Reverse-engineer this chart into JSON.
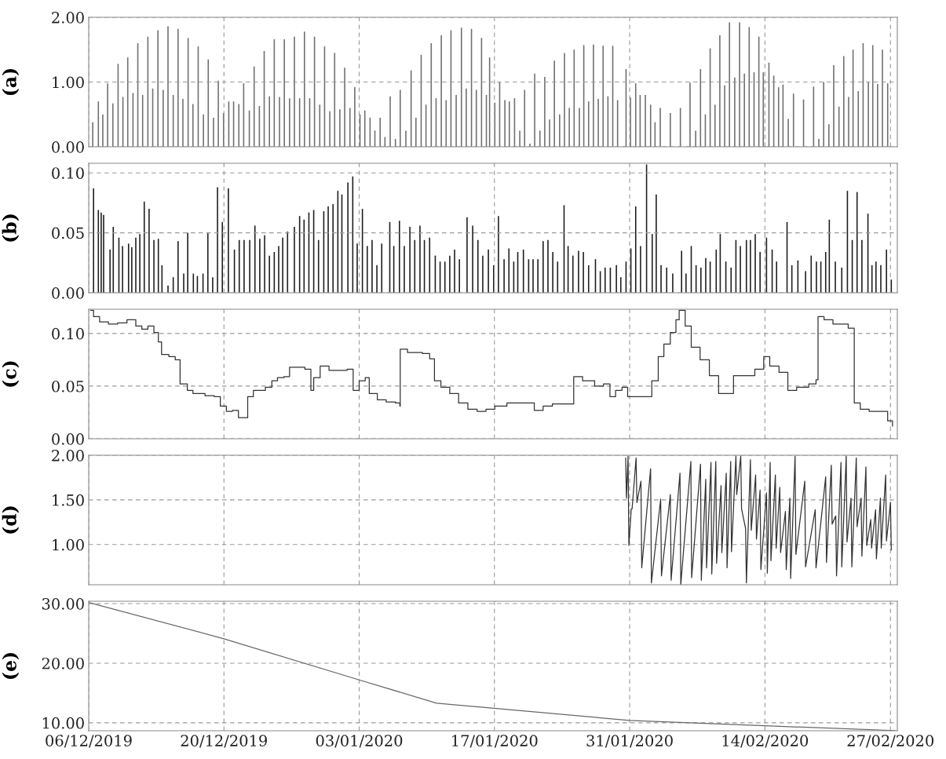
{
  "chart_data": [
    {
      "type": "bar",
      "ylabel": "(a)",
      "color": "#707070",
      "grid": true,
      "tick_labels": "y",
      "xlim": [
        "2019-12-06",
        "2020-02-27T17:00"
      ],
      "xticks": [
        {
          "value": "2019-12-06",
          "label": null
        },
        {
          "value": "2019-12-20",
          "label": null
        },
        {
          "value": "2020-01-03",
          "label": null
        },
        {
          "value": "2020-01-17",
          "label": null
        },
        {
          "value": "2020-01-31",
          "label": null
        },
        {
          "value": "2020-02-14",
          "label": null
        },
        {
          "value": "2020-02-27",
          "label": null
        }
      ],
      "ylim": [
        0,
        2.0
      ],
      "yticks": [
        {
          "value": 0,
          "label": "0.00"
        },
        {
          "value": 1,
          "label": "1.00"
        },
        {
          "value": 2,
          "label": "2.00"
        }
      ],
      "x": [
        "2019-12-06T10:00",
        "2019-12-07T00:00",
        "2019-12-07T11:00",
        "2019-12-07T23:00",
        "2019-12-08T12:00",
        "2019-12-09T01:00",
        "2019-12-09T13:00",
        "2019-12-10T01:00",
        "2019-12-10T14:00",
        "2019-12-11T02:00",
        "2019-12-11T14:00",
        "2019-12-12T03:00",
        "2019-12-12T15:00",
        "2019-12-13T04:00",
        "2019-12-13T17:00",
        "2019-12-14T05:00",
        "2019-12-14T18:00",
        "2019-12-15T06:00",
        "2019-12-15T18:00",
        "2019-12-16T07:00",
        "2019-12-16T19:00",
        "2019-12-17T08:00",
        "2019-12-17T21:00",
        "2019-12-18T09:00",
        "2019-12-18T22:00",
        "2019-12-19T10:00",
        "2019-12-19T23:00",
        "2019-12-20T12:00",
        "2019-12-21T00:00",
        "2019-12-21T13:00",
        "2019-12-22T01:00",
        "2019-12-22T15:00",
        "2019-12-23T03:00",
        "2019-12-23T16:00",
        "2019-12-24T04:00",
        "2019-12-24T17:00",
        "2019-12-25T05:00",
        "2019-12-25T18:00",
        "2019-12-26T06:00",
        "2019-12-26T19:00",
        "2019-12-27T07:00",
        "2019-12-27T20:00",
        "2019-12-28T08:00",
        "2019-12-28T21:00",
        "2019-12-29T09:00",
        "2019-12-29T22:00",
        "2019-12-30T10:00",
        "2019-12-30T23:00",
        "2019-12-31T11:00",
        "2020-01-01T00:00",
        "2020-01-01T12:00",
        "2020-01-02T01:00",
        "2020-01-02T13:00",
        "2020-01-03T02:00",
        "2020-01-03T14:00",
        "2020-01-04T03:00",
        "2020-01-04T15:00",
        "2020-01-05T04:00",
        "2020-01-05T16:00",
        "2020-01-06T05:00",
        "2020-01-06T18:00",
        "2020-01-07T06:00",
        "2020-01-07T20:00",
        "2020-01-08T09:00",
        "2020-01-08T21:00",
        "2020-01-09T10:00",
        "2020-01-09T22:00",
        "2020-01-10T11:00",
        "2020-01-10T23:00",
        "2020-01-11T12:00",
        "2020-01-12T00:00",
        "2020-01-12T12:00",
        "2020-01-13T01:00",
        "2020-01-13T14:00",
        "2020-01-14T02:00",
        "2020-01-14T15:00",
        "2020-01-15T03:00",
        "2020-01-15T16:00",
        "2020-01-16T04:00",
        "2020-01-16T12:00",
        "2020-01-17T01:00",
        "2020-01-17T13:00",
        "2020-01-18T02:00",
        "2020-01-18T13:00",
        "2020-01-19T02:00",
        "2020-01-19T15:00",
        "2020-01-20T03:00",
        "2020-01-20T16:00",
        "2020-01-21T04:00",
        "2020-01-21T17:00",
        "2020-01-22T05:00",
        "2020-01-22T17:00",
        "2020-01-23T05:00",
        "2020-01-23T18:00",
        "2020-01-24T06:00",
        "2020-01-24T18:00",
        "2020-01-25T06:00",
        "2020-01-25T19:00",
        "2020-01-26T06:00",
        "2020-01-26T18:00",
        "2020-01-27T06:00",
        "2020-01-27T18:00",
        "2020-01-28T06:00",
        "2020-01-28T18:00",
        "2020-01-29T06:00",
        "2020-01-29T18:00",
        "2020-01-30T15:00",
        "2020-01-31T02:00",
        "2020-01-31T15:00",
        "2020-02-01T02:00",
        "2020-02-01T15:00",
        "2020-02-02T04:00",
        "2020-02-02T15:00",
        "2020-02-03T04:00",
        "2020-02-04T05:00",
        "2020-02-05T06:00",
        "2020-02-06T06:00",
        "2020-02-06T20:00",
        "2020-02-07T08:00",
        "2020-02-07T20:00",
        "2020-02-08T08:00",
        "2020-02-08T20:00",
        "2020-02-09T08:00",
        "2020-02-09T20:00",
        "2020-02-10T08:00",
        "2020-02-10T21:00",
        "2020-02-11T09:00",
        "2020-02-11T21:00",
        "2020-02-12T09:00",
        "2020-02-12T21:00",
        "2020-02-13T09:00",
        "2020-02-13T20:00",
        "2020-02-14T10:00",
        "2020-02-14T22:00",
        "2020-02-15T10:00",
        "2020-02-15T21:00",
        "2020-02-16T10:00",
        "2020-02-16T23:00",
        "2020-02-18T00:00",
        "2020-02-19T01:00",
        "2020-02-19T14:00",
        "2020-02-20T02:00",
        "2020-02-20T15:00",
        "2020-02-21T03:00",
        "2020-02-21T16:00",
        "2020-02-22T04:00",
        "2020-02-22T16:00",
        "2020-02-23T03:00",
        "2020-02-23T16:00",
        "2020-02-24T04:00",
        "2020-02-24T17:00",
        "2020-02-25T04:00",
        "2020-02-25T16:00",
        "2020-02-26T04:00",
        "2020-02-26T17:00"
      ],
      "values": [
        0.38,
        0.7,
        0.5,
        0.98,
        0.67,
        1.28,
        0.77,
        1.38,
        0.83,
        1.6,
        0.8,
        1.7,
        0.9,
        1.8,
        0.88,
        1.86,
        0.8,
        1.82,
        0.74,
        1.68,
        0.66,
        1.55,
        0.5,
        1.35,
        0.45,
        1.02,
        0.52,
        0.7,
        0.7,
        0.66,
        0.98,
        0.56,
        1.24,
        0.63,
        1.48,
        0.78,
        1.66,
        0.77,
        1.66,
        0.75,
        1.7,
        0.75,
        1.78,
        0.75,
        1.7,
        0.65,
        1.55,
        0.55,
        1.45,
        0.58,
        1.22,
        0.6,
        0.92,
        0.5,
        0.56,
        0.45,
        0.25,
        0.45,
        0.15,
        0.78,
        0.12,
        0.88,
        0.25,
        1.18,
        0.45,
        1.42,
        0.65,
        1.6,
        0.75,
        1.72,
        0.72,
        1.8,
        0.8,
        1.84,
        0.9,
        1.82,
        0.88,
        1.68,
        0.8,
        1.38,
        0.68,
        1.0,
        0.72,
        0.7,
        0.75,
        0.25,
        0.88,
        0.05,
        1.13,
        0.25,
        1.08,
        0.42,
        1.33,
        0.5,
        1.45,
        0.6,
        1.5,
        0.6,
        1.57,
        0.7,
        1.58,
        0.74,
        1.56,
        0.78,
        1.56,
        0.72,
        1.2,
        0.76,
        0.98,
        0.8,
        0.8,
        0.65,
        0.38,
        0.6,
        0.52,
        0.6,
        0.99,
        0.25,
        1.2,
        0.5,
        1.52,
        0.65,
        1.72,
        0.95,
        1.92,
        1.07,
        1.92,
        1.13,
        1.85,
        1.15,
        1.7,
        1.15,
        1.3,
        1.1,
        0.92,
        0.96,
        0.43,
        0.82,
        0.73,
        0.93,
        0.12,
        1.0,
        0.35,
        1.26,
        0.62,
        1.4,
        0.77,
        1.5,
        0.86,
        1.6,
        1.0,
        1.57,
        0.97,
        1.5,
        0.98
      ]
    },
    {
      "type": "bar",
      "ylabel": "(b)",
      "color": "#1e1e1e",
      "grid": true,
      "tick_labels": "y",
      "xlim": [
        "2019-12-06",
        "2020-02-27T17:00"
      ],
      "xticks": [
        {
          "value": "2019-12-06",
          "label": null
        },
        {
          "value": "2019-12-20",
          "label": null
        },
        {
          "value": "2020-01-03",
          "label": null
        },
        {
          "value": "2020-01-17",
          "label": null
        },
        {
          "value": "2020-01-31",
          "label": null
        },
        {
          "value": "2020-02-14",
          "label": null
        },
        {
          "value": "2020-02-27",
          "label": null
        }
      ],
      "ylim": [
        0,
        0.108
      ],
      "yticks": [
        {
          "value": 0,
          "label": "0.00"
        },
        {
          "value": 0.05,
          "label": "0.05"
        },
        {
          "value": 0.1,
          "label": "0.10"
        }
      ],
      "x": [
        "2019-12-06T12:00",
        "2019-12-07T00:00",
        "2019-12-07T07:00",
        "2019-12-07T13:00",
        "2019-12-08T05:00",
        "2019-12-08T13:00",
        "2019-12-09T03:00",
        "2019-12-09T12:00",
        "2019-12-10T03:00",
        "2019-12-10T11:00",
        "2019-12-10T21:00",
        "2019-12-11T07:00",
        "2019-12-11T18:00",
        "2019-12-12T06:00",
        "2019-12-12T18:00",
        "2019-12-13T05:00",
        "2019-12-13T14:00",
        "2019-12-14T05:00",
        "2019-12-14T18:00",
        "2019-12-15T06:00",
        "2019-12-15T20:00",
        "2019-12-16T06:00",
        "2019-12-16T20:00",
        "2019-12-17T06:00",
        "2019-12-17T20:00",
        "2019-12-18T08:00",
        "2019-12-18T20:00",
        "2019-12-19T08:00",
        "2019-12-19T20:00",
        "2019-12-20T11:00",
        "2019-12-21T02:00",
        "2019-12-21T14:00",
        "2019-12-22T02:00",
        "2019-12-22T16:00",
        "2019-12-23T05:00",
        "2019-12-23T17:00",
        "2019-12-24T05:00",
        "2019-12-24T17:00",
        "2019-12-25T05:00",
        "2019-12-25T16:00",
        "2019-12-26T02:00",
        "2019-12-26T14:00",
        "2019-12-27T07:00",
        "2019-12-27T20:00",
        "2019-12-28T07:00",
        "2019-12-28T19:00",
        "2019-12-29T07:00",
        "2019-12-29T19:00",
        "2019-12-30T08:00",
        "2019-12-30T19:00",
        "2019-12-31T07:00",
        "2019-12-31T19:00",
        "2020-01-01T05:00",
        "2020-01-01T20:00",
        "2020-01-02T08:00",
        "2020-01-02T19:00",
        "2020-01-03T08:00",
        "2020-01-03T20:00",
        "2020-01-04T08:00",
        "2020-01-04T20:00",
        "2020-01-05T08:00",
        "2020-01-06T04:00",
        "2020-01-06T14:00",
        "2020-01-07T04:00",
        "2020-01-07T16:00",
        "2020-01-08T06:00",
        "2020-01-08T18:00",
        "2020-01-09T07:00",
        "2020-01-09T18:00",
        "2020-01-10T07:00",
        "2020-01-10T21:00",
        "2020-01-11T09:00",
        "2020-01-11T21:00",
        "2020-01-12T09:00",
        "2020-01-12T21:00",
        "2020-01-13T09:00",
        "2020-01-14T04:00",
        "2020-01-14T18:00",
        "2020-01-15T07:00",
        "2020-01-15T19:00",
        "2020-01-16T09:00",
        "2020-01-16T22:00",
        "2020-01-17T10:00",
        "2020-01-18T00:00",
        "2020-01-18T12:00",
        "2020-01-19T00:00",
        "2020-01-19T10:00",
        "2020-01-20T00:00",
        "2020-01-20T13:00",
        "2020-01-21T00:00",
        "2020-01-21T12:00",
        "2020-01-22T01:00",
        "2020-01-22T13:00",
        "2020-01-23T01:00",
        "2020-01-23T13:00",
        "2020-01-24T05:00",
        "2020-01-24T15:00",
        "2020-01-25T03:00",
        "2020-01-25T17:00",
        "2020-01-26T05:00",
        "2020-01-26T18:00",
        "2020-01-27T11:00",
        "2020-01-27T23:00",
        "2020-01-28T11:00",
        "2020-01-29T00:00",
        "2020-01-29T15:00",
        "2020-01-30T02:00",
        "2020-01-30T15:00",
        "2020-01-31T03:00",
        "2020-01-31T15:00",
        "2020-02-01T03:00",
        "2020-02-01T18:00",
        "2020-02-02T08:00",
        "2020-02-02T18:00",
        "2020-02-03T06:00",
        "2020-02-03T20:00",
        "2020-02-04T11:00",
        "2020-02-05T09:00",
        "2020-02-05T20:00",
        "2020-02-06T09:00",
        "2020-02-06T21:00",
        "2020-02-07T09:00",
        "2020-02-07T21:00",
        "2020-02-08T08:00",
        "2020-02-08T23:00",
        "2020-02-09T09:00",
        "2020-02-09T23:00",
        "2020-02-10T12:00",
        "2020-02-11T00:00",
        "2020-02-11T11:00",
        "2020-02-12T02:00",
        "2020-02-12T12:00",
        "2020-02-13T00:00",
        "2020-02-13T12:00",
        "2020-02-14T04:00",
        "2020-02-14T18:00",
        "2020-02-15T05:00",
        "2020-02-16T07:00",
        "2020-02-16T19:00",
        "2020-02-17T10:00",
        "2020-02-18T05:00",
        "2020-02-18T19:00",
        "2020-02-19T08:00",
        "2020-02-19T19:00",
        "2020-02-20T07:00",
        "2020-02-20T16:00",
        "2020-02-21T07:00",
        "2020-02-21T23:00",
        "2020-02-22T13:00",
        "2020-02-23T01:00",
        "2020-02-23T13:00",
        "2020-02-24T01:00",
        "2020-02-24T16:00",
        "2020-02-25T02:00",
        "2020-02-25T12:00",
        "2020-02-26T00:00",
        "2020-02-26T14:00",
        "2020-02-27T02:00"
      ],
      "values": [
        0.087,
        0.069,
        0.067,
        0.065,
        0.036,
        0.055,
        0.046,
        0.039,
        0.041,
        0.038,
        0.046,
        0.049,
        0.076,
        0.07,
        0.044,
        0.045,
        0.023,
        0.006,
        0.013,
        0.043,
        0.016,
        0.05,
        0.016,
        0.014,
        0.016,
        0.05,
        0.013,
        0.088,
        0.059,
        0.087,
        0.036,
        0.044,
        0.044,
        0.044,
        0.056,
        0.045,
        0.048,
        0.031,
        0.034,
        0.039,
        0.046,
        0.051,
        0.055,
        0.064,
        0.061,
        0.067,
        0.069,
        0.044,
        0.068,
        0.072,
        0.074,
        0.085,
        0.082,
        0.092,
        0.097,
        0.041,
        0.07,
        0.039,
        0.044,
        0.023,
        0.041,
        0.059,
        0.039,
        0.06,
        0.039,
        0.055,
        0.044,
        0.056,
        0.044,
        0.046,
        0.031,
        0.026,
        0.026,
        0.031,
        0.036,
        0.028,
        0.063,
        0.056,
        0.044,
        0.031,
        0.036,
        0.023,
        0.064,
        0.028,
        0.037,
        0.026,
        0.034,
        0.036,
        0.028,
        0.028,
        0.028,
        0.043,
        0.044,
        0.034,
        0.026,
        0.073,
        0.039,
        0.031,
        0.035,
        0.034,
        0.023,
        0.028,
        0.018,
        0.021,
        0.021,
        0.023,
        0.013,
        0.026,
        0.037,
        0.072,
        0.039,
        0.107,
        0.049,
        0.082,
        0.023,
        0.021,
        0.016,
        0.035,
        0.016,
        0.039,
        0.023,
        0.021,
        0.029,
        0.026,
        0.036,
        0.049,
        0.026,
        0.021,
        0.044,
        0.039,
        0.044,
        0.044,
        0.049,
        0.034,
        0.046,
        0.036,
        0.026,
        0.059,
        0.023,
        0.027,
        0.018,
        0.031,
        0.026,
        0.026,
        0.034,
        0.061,
        0.026,
        0.021,
        0.085,
        0.044,
        0.084,
        0.044,
        0.066,
        0.023,
        0.026,
        0.023,
        0.036,
        0.011
      ]
    },
    {
      "type": "step",
      "ylabel": "(c)",
      "color": "#333333",
      "grid": true,
      "tick_labels": "y",
      "xlim": [
        "2019-12-06",
        "2020-02-27T17:00"
      ],
      "xticks": [
        {
          "value": "2019-12-06",
          "label": null
        },
        {
          "value": "2019-12-20",
          "label": null
        },
        {
          "value": "2020-01-03",
          "label": null
        },
        {
          "value": "2020-01-17",
          "label": null
        },
        {
          "value": "2020-01-31",
          "label": null
        },
        {
          "value": "2020-02-14",
          "label": null
        },
        {
          "value": "2020-02-27",
          "label": null
        }
      ],
      "ylim": [
        0,
        0.123
      ],
      "yticks": [
        {
          "value": 0,
          "label": "0.00"
        },
        {
          "value": 0.05,
          "label": "0.05"
        },
        {
          "value": 0.1,
          "label": "0.10"
        }
      ],
      "x": [
        "2019-12-06T05:00",
        "2019-12-06T12:00",
        "2019-12-07T03:00",
        "2019-12-08T01:00",
        "2019-12-09T00:00",
        "2019-12-09T23:00",
        "2019-12-10T13:00",
        "2019-12-10T21:00",
        "2019-12-11T12:00",
        "2019-12-12T03:00",
        "2019-12-12T18:00",
        "2019-12-13T05:00",
        "2019-12-13T13:00",
        "2019-12-14T07:00",
        "2019-12-14T23:00",
        "2019-12-15T11:00",
        "2019-12-16T05:00",
        "2019-12-16T19:00",
        "2019-12-18T01:00",
        "2019-12-19T00:00",
        "2019-12-19T15:00",
        "2019-12-20T06:00",
        "2019-12-20T21:00",
        "2019-12-21T12:00",
        "2019-12-22T03:00",
        "2019-12-22T11:00",
        "2019-12-23T01:00",
        "2019-12-24T07:00",
        "2019-12-24T23:00",
        "2019-12-25T13:00",
        "2019-12-26T05:00",
        "2019-12-26T19:00",
        "2019-12-27T18:00",
        "2019-12-28T09:00",
        "2019-12-29T00:00",
        "2019-12-29T07:00",
        "2019-12-29T23:00",
        "2019-12-30T21:00",
        "2019-12-31T19:00",
        "2020-01-01T18:00",
        "2020-01-02T09:00",
        "2020-01-03T00:00",
        "2020-01-03T15:00",
        "2020-01-04T01:00",
        "2020-01-04T21:00",
        "2020-01-05T19:00",
        "2020-01-06T18:00",
        "2020-01-07T05:00",
        "2020-01-07T06:00",
        "2020-01-08T00:00",
        "2020-01-08T23:00",
        "2020-01-09T13:00",
        "2020-01-10T07:00",
        "2020-01-10T19:00",
        "2020-01-11T11:00",
        "2020-01-12T09:00",
        "2020-01-13T07:00",
        "2020-01-14T06:00",
        "2020-01-15T05:00",
        "2020-01-16T03:00",
        "2020-01-17T01:00",
        "2020-01-18T07:00",
        "2020-01-20T05:00",
        "2020-01-21T03:00",
        "2020-01-22T01:00",
        "2020-01-23T00:00",
        "2020-01-23T23:00",
        "2020-01-24T21:00",
        "2020-01-25T05:00",
        "2020-01-26T03:00",
        "2020-01-27T09:00",
        "2020-01-28T07:00",
        "2020-01-28T23:00",
        "2020-01-29T13:00",
        "2020-01-30T05:00",
        "2020-01-30T19:00",
        "2020-02-01T09:00",
        "2020-02-02T07:00",
        "2020-02-02T23:00",
        "2020-02-03T13:00",
        "2020-02-04T05:00",
        "2020-02-04T19:00",
        "2020-02-05T03:00",
        "2020-02-05T18:00",
        "2020-02-06T09:00",
        "2020-02-07T07:00",
        "2020-02-08T06:00",
        "2020-02-09T05:00",
        "2020-02-10T03:00",
        "2020-02-10T18:00",
        "2020-02-11T17:00",
        "2020-02-12T23:00",
        "2020-02-13T21:00",
        "2020-02-14T12:00",
        "2020-02-15T11:00",
        "2020-02-16T09:00",
        "2020-02-17T07:00",
        "2020-02-18T13:00",
        "2020-02-19T07:00",
        "2020-02-19T12:00",
        "2020-02-20T03:00",
        "2020-02-21T01:00",
        "2020-02-22T15:00",
        "2020-02-23T01:00",
        "2020-02-23T06:00",
        "2020-02-23T21:00",
        "2020-02-24T19:00",
        "2020-02-26T09:00",
        "2020-02-26T17:00",
        "2020-02-27T05:00"
      ],
      "values": [
        0.122,
        0.116,
        0.111,
        0.109,
        0.11,
        0.113,
        0.113,
        0.107,
        0.104,
        0.107,
        0.101,
        0.092,
        0.08,
        0.078,
        0.075,
        0.052,
        0.046,
        0.043,
        0.041,
        0.04,
        0.031,
        0.026,
        0.027,
        0.02,
        0.02,
        0.04,
        0.046,
        0.049,
        0.055,
        0.058,
        0.059,
        0.068,
        0.068,
        0.066,
        0.046,
        0.058,
        0.069,
        0.065,
        0.065,
        0.066,
        0.046,
        0.055,
        0.058,
        0.043,
        0.037,
        0.035,
        0.034,
        0.031,
        0.085,
        0.082,
        0.082,
        0.081,
        0.076,
        0.055,
        0.049,
        0.043,
        0.034,
        0.028,
        0.026,
        0.028,
        0.031,
        0.034,
        0.034,
        0.027,
        0.031,
        0.033,
        0.033,
        0.033,
        0.059,
        0.055,
        0.05,
        0.052,
        0.04,
        0.046,
        0.049,
        0.04,
        0.04,
        0.055,
        0.078,
        0.09,
        0.101,
        0.113,
        0.122,
        0.107,
        0.087,
        0.075,
        0.06,
        0.043,
        0.043,
        0.06,
        0.06,
        0.066,
        0.078,
        0.069,
        0.063,
        0.046,
        0.049,
        0.052,
        0.056,
        0.116,
        0.113,
        0.109,
        0.105,
        0.105,
        0.034,
        0.028,
        0.026,
        0.026,
        0.017,
        0.012
      ]
    },
    {
      "type": "line",
      "ylabel": "(d)",
      "color": "#333333",
      "grid": true,
      "tick_labels": "y",
      "xlim": [
        "2019-12-06",
        "2020-02-27T17:00"
      ],
      "xticks": [
        {
          "value": "2019-12-06",
          "label": null
        },
        {
          "value": "2019-12-20",
          "label": null
        },
        {
          "value": "2020-01-03",
          "label": null
        },
        {
          "value": "2020-01-17",
          "label": null
        },
        {
          "value": "2020-01-31",
          "label": null
        },
        {
          "value": "2020-02-14",
          "label": null
        },
        {
          "value": "2020-02-27",
          "label": null
        }
      ],
      "ylim": [
        0.55,
        2.0
      ],
      "yticks": [
        {
          "value": 1,
          "label": "1.00"
        },
        {
          "value": 1.5,
          "label": "1.50"
        },
        {
          "value": 2,
          "label": "2.00"
        }
      ],
      "x": [
        "2020-01-30T14:00",
        "2020-01-30T16:00",
        "2020-01-30T20:00",
        "2020-01-30T22:00",
        "2020-01-31T04:00",
        "2020-01-31T06:00",
        "2020-01-31T16:00",
        "2020-01-31T18:00",
        "2020-02-01T04:00",
        "2020-02-01T06:00",
        "2020-02-02T04:00",
        "2020-02-02T06:00",
        "2020-02-03T05:00",
        "2020-02-03T07:00",
        "2020-02-04T05:00",
        "2020-02-04T07:00",
        "2020-02-05T05:00",
        "2020-02-05T07:00",
        "2020-02-06T08:00",
        "2020-02-06T10:00",
        "2020-02-07T08:00",
        "2020-02-07T10:00",
        "2020-02-07T21:00",
        "2020-02-07T23:00",
        "2020-02-08T10:00",
        "2020-02-08T12:00",
        "2020-02-08T22:00",
        "2020-02-09T00:00",
        "2020-02-09T11:00",
        "2020-02-09T13:00",
        "2020-02-10T00:00",
        "2020-02-10T02:00",
        "2020-02-10T11:00",
        "2020-02-10T13:00",
        "2020-02-11T00:00",
        "2020-02-11T02:00",
        "2020-02-11T12:00",
        "2020-02-11T14:00",
        "2020-02-12T00:00",
        "2020-02-12T02:00",
        "2020-02-12T12:00",
        "2020-02-12T14:00",
        "2020-02-13T01:00",
        "2020-02-13T03:00",
        "2020-02-13T12:00",
        "2020-02-13T14:00",
        "2020-02-14T04:00",
        "2020-02-14T06:00",
        "2020-02-14T13:00",
        "2020-02-14T15:00",
        "2020-02-15T02:00",
        "2020-02-15T04:00",
        "2020-02-15T13:00",
        "2020-02-15T15:00",
        "2020-02-16T03:00",
        "2020-02-16T05:00",
        "2020-02-16T14:00",
        "2020-02-16T16:00",
        "2020-02-17T03:00",
        "2020-02-17T05:00",
        "2020-02-18T03:00",
        "2020-02-18T05:00",
        "2020-02-19T05:00",
        "2020-02-19T07:00",
        "2020-02-20T07:00",
        "2020-02-20T09:00",
        "2020-02-20T21:00",
        "2020-02-20T23:00",
        "2020-02-21T08:00",
        "2020-02-21T10:00",
        "2020-02-21T21:00",
        "2020-02-21T23:00",
        "2020-02-22T10:00",
        "2020-02-22T12:00",
        "2020-02-22T22:00",
        "2020-02-23T00:00",
        "2020-02-23T11:00",
        "2020-02-23T13:00",
        "2020-02-23T23:00",
        "2020-02-24T01:00",
        "2020-02-24T11:00",
        "2020-02-24T13:00",
        "2020-02-24T23:00",
        "2020-02-25T01:00",
        "2020-02-25T11:00",
        "2020-02-25T13:00",
        "2020-02-25T23:00",
        "2020-02-26T01:00",
        "2020-02-26T12:00",
        "2020-02-26T14:00",
        "2020-02-27T00:00",
        "2020-02-27T02:00"
      ],
      "values": [
        1.97,
        1.52,
        1.99,
        0.99,
        1.4,
        1.4,
        1.97,
        1.47,
        1.71,
        0.74,
        1.85,
        0.57,
        1.51,
        0.65,
        1.56,
        0.6,
        1.8,
        0.55,
        1.93,
        0.63,
        1.9,
        0.6,
        1.73,
        0.74,
        1.92,
        0.67,
        1.93,
        0.79,
        1.66,
        0.91,
        1.8,
        0.74,
        1.93,
        0.92,
        1.99,
        1.56,
        1.99,
        1.4,
        1.18,
        0.57,
        1.95,
        1.16,
        1.78,
        1.06,
        1.61,
        0.72,
        1.58,
        0.68,
        1.92,
        0.82,
        1.78,
        0.96,
        1.64,
        0.91,
        1.37,
        0.72,
        1.52,
        0.62,
        1.99,
        0.89,
        1.71,
        0.75,
        1.39,
        0.74,
        1.76,
        0.8,
        1.89,
        1.23,
        1.32,
        0.65,
        1.92,
        0.75,
        1.99,
        1.03,
        1.52,
        0.75,
        1.97,
        1.2,
        1.52,
        0.87,
        1.87,
        0.99,
        1.28,
        0.96,
        1.39,
        0.84,
        1.52,
        0.96,
        1.78,
        1.04,
        1.47,
        0.94
      ]
    },
    {
      "type": "line",
      "ylabel": "(e)",
      "color": "#666666",
      "grid": true,
      "xlim": [
        "2019-12-06",
        "2020-02-27T17:00"
      ],
      "xticks": [
        {
          "value": "2019-12-06",
          "label": "06/12/2019"
        },
        {
          "value": "2019-12-20",
          "label": "20/12/2019"
        },
        {
          "value": "2020-01-03",
          "label": "03/01/2020"
        },
        {
          "value": "2020-01-17",
          "label": "17/01/2020"
        },
        {
          "value": "2020-01-31",
          "label": "31/01/2020"
        },
        {
          "value": "2020-02-14",
          "label": "14/02/2020"
        },
        {
          "value": "2020-02-27",
          "label": "27/02/2020"
        }
      ],
      "ylim": [
        8.67,
        30.4
      ],
      "yticks": [
        {
          "value": 10,
          "label": "10.00"
        },
        {
          "value": 20,
          "label": "20.00"
        },
        {
          "value": 30,
          "label": "30.00"
        }
      ],
      "x": [
        "2019-12-06",
        "2019-12-20",
        "2020-01-03",
        "2020-01-11",
        "2020-01-31",
        "2020-02-14",
        "2020-02-27T12:00"
      ],
      "values": [
        30.2,
        24.1,
        17.2,
        13.3,
        10.4,
        9.5,
        8.7
      ]
    }
  ]
}
